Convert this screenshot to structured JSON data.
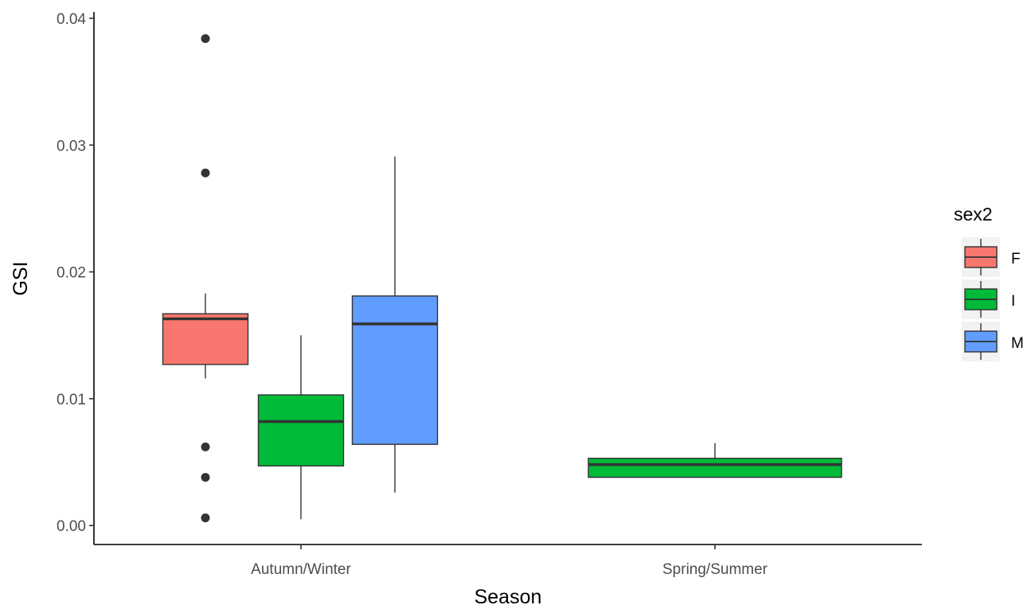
{
  "chart_data": {
    "type": "boxplot",
    "xlabel": "Season",
    "ylabel": "GSI",
    "categories": [
      "Autumn/Winter",
      "Spring/Summer"
    ],
    "ylim": [
      -0.0015,
      0.0405
    ],
    "yticks": [
      0.0,
      0.01,
      0.02,
      0.03,
      0.04
    ],
    "ytick_labels": [
      "0.00",
      "0.01",
      "0.02",
      "0.03",
      "0.04"
    ],
    "grid": false,
    "legend": {
      "title": "sex2",
      "position": "right",
      "entries": [
        {
          "label": "F",
          "color": "#F8766D"
        },
        {
          "label": "I",
          "color": "#00BA38"
        },
        {
          "label": "M",
          "color": "#619CFF"
        }
      ]
    },
    "boxes": [
      {
        "category": "Autumn/Winter",
        "group": "F",
        "color": "#F8766D",
        "q1": 0.0127,
        "median": 0.0163,
        "q3": 0.0167,
        "whisker_low": 0.0116,
        "whisker_high": 0.0183,
        "outliers": [
          0.0384,
          0.0278,
          0.0062,
          0.0038,
          0.0006
        ]
      },
      {
        "category": "Autumn/Winter",
        "group": "I",
        "color": "#00BA38",
        "q1": 0.0047,
        "median": 0.0082,
        "q3": 0.0103,
        "whisker_low": 0.0005,
        "whisker_high": 0.015,
        "outliers": []
      },
      {
        "category": "Autumn/Winter",
        "group": "M",
        "color": "#619CFF",
        "q1": 0.0064,
        "median": 0.0159,
        "q3": 0.0181,
        "whisker_low": 0.0026,
        "whisker_high": 0.0291,
        "outliers": []
      },
      {
        "category": "Spring/Summer",
        "group": "I",
        "color": "#00BA38",
        "q1": 0.0038,
        "median": 0.0048,
        "q3": 0.0053,
        "whisker_low": 0.0038,
        "whisker_high": 0.0065,
        "outliers": []
      }
    ]
  }
}
